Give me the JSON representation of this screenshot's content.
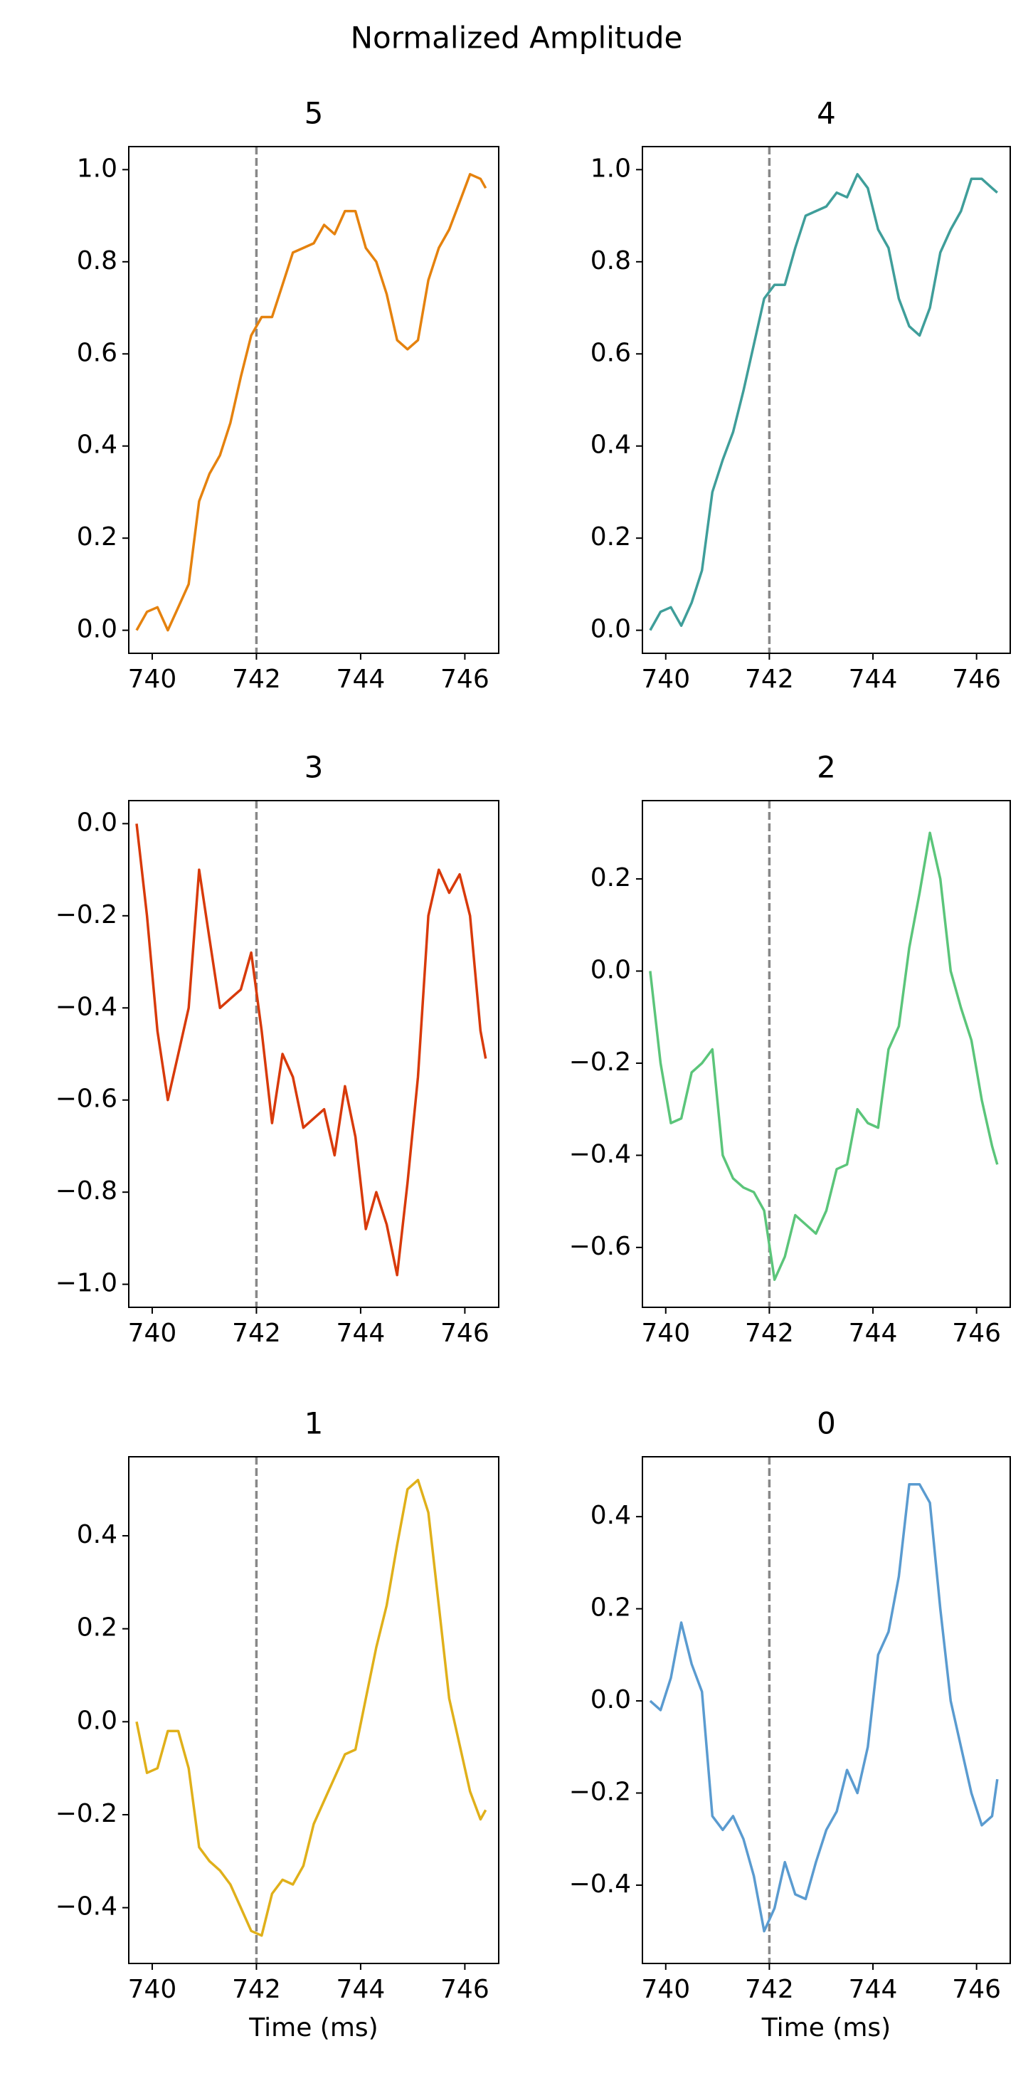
{
  "title": "Normalized Amplitude",
  "chart_data": [
    {
      "type": "line",
      "title": "5",
      "x": [
        739.7,
        739.9,
        740.1,
        740.3,
        740.5,
        740.7,
        740.9,
        741.1,
        741.3,
        741.5,
        741.7,
        741.9,
        742.1,
        742.3,
        742.5,
        742.7,
        742.9,
        743.1,
        743.3,
        743.5,
        743.7,
        743.9,
        744.1,
        744.3,
        744.5,
        744.7,
        744.9,
        745.1,
        745.3,
        745.5,
        745.7,
        745.9,
        746.1,
        746.3,
        746.4
      ],
      "series": [
        {
          "color": "#e5820e",
          "values": [
            0.0,
            0.04,
            0.05,
            0.0,
            0.05,
            0.1,
            0.28,
            0.34,
            0.38,
            0.45,
            0.55,
            0.64,
            0.68,
            0.68,
            0.75,
            0.82,
            0.83,
            0.84,
            0.88,
            0.86,
            0.91,
            0.91,
            0.83,
            0.8,
            0.73,
            0.63,
            0.61,
            0.63,
            0.76,
            0.83,
            0.87,
            0.93,
            0.99,
            0.98,
            0.96
          ]
        }
      ],
      "xlim": [
        739.55,
        746.65
      ],
      "xticks": [
        740,
        742,
        744,
        746
      ],
      "ylim": [
        -0.05,
        1.05
      ],
      "yticks": [
        {
          "value": 0,
          "label": "0.0"
        },
        0.2,
        0.4,
        0.6,
        0.8,
        {
          "value": 1,
          "label": "1.0"
        }
      ],
      "vline": 742
    },
    {
      "type": "line",
      "title": "4",
      "x": [
        739.7,
        739.9,
        740.1,
        740.3,
        740.5,
        740.7,
        740.9,
        741.1,
        741.3,
        741.5,
        741.7,
        741.9,
        742.1,
        742.3,
        742.5,
        742.7,
        742.9,
        743.1,
        743.3,
        743.5,
        743.7,
        743.9,
        744.1,
        744.3,
        744.5,
        744.7,
        744.9,
        745.1,
        745.3,
        745.5,
        745.7,
        745.9,
        746.1,
        746.3,
        746.4
      ],
      "series": [
        {
          "color": "#3f9e9a",
          "values": [
            0.0,
            0.04,
            0.05,
            0.01,
            0.06,
            0.13,
            0.3,
            0.37,
            0.43,
            0.52,
            0.62,
            0.72,
            0.75,
            0.75,
            0.83,
            0.9,
            0.91,
            0.92,
            0.95,
            0.94,
            0.99,
            0.96,
            0.87,
            0.83,
            0.72,
            0.66,
            0.64,
            0.7,
            0.82,
            0.87,
            0.91,
            0.98,
            0.98,
            0.96,
            0.95
          ]
        }
      ],
      "xlim": [
        739.55,
        746.65
      ],
      "xticks": [
        740,
        742,
        744,
        746
      ],
      "ylim": [
        -0.05,
        1.05
      ],
      "yticks": [
        {
          "value": 0,
          "label": "0.0"
        },
        0.2,
        0.4,
        0.6,
        0.8,
        {
          "value": 1,
          "label": "1.0"
        }
      ],
      "vline": 742
    },
    {
      "type": "line",
      "title": "3",
      "x": [
        739.7,
        739.9,
        740.1,
        740.3,
        740.5,
        740.7,
        740.9,
        741.1,
        741.3,
        741.5,
        741.7,
        741.9,
        742.1,
        742.3,
        742.5,
        742.7,
        742.9,
        743.1,
        743.3,
        743.5,
        743.7,
        743.9,
        744.1,
        744.3,
        744.5,
        744.7,
        744.9,
        745.1,
        745.3,
        745.5,
        745.7,
        745.9,
        746.1,
        746.3,
        746.4
      ],
      "series": [
        {
          "color": "#d83a0a",
          "values": [
            0.0,
            -0.2,
            -0.45,
            -0.6,
            -0.5,
            -0.4,
            -0.1,
            -0.25,
            -0.4,
            -0.38,
            -0.36,
            -0.28,
            -0.45,
            -0.65,
            -0.5,
            -0.55,
            -0.66,
            -0.64,
            -0.62,
            -0.72,
            -0.57,
            -0.68,
            -0.88,
            -0.8,
            -0.87,
            -0.98,
            -0.78,
            -0.55,
            -0.2,
            -0.1,
            -0.15,
            -0.11,
            -0.2,
            -0.45,
            -0.51
          ]
        }
      ],
      "xlim": [
        739.55,
        746.65
      ],
      "xticks": [
        740,
        742,
        744,
        746
      ],
      "ylim": [
        -1.05,
        0.05
      ],
      "yticks": [
        {
          "value": -1,
          "label": "−1.0"
        },
        {
          "value": -0.8,
          "label": "−0.8"
        },
        {
          "value": -0.6,
          "label": "−0.6"
        },
        {
          "value": -0.4,
          "label": "−0.4"
        },
        {
          "value": -0.2,
          "label": "−0.2"
        },
        {
          "value": 0,
          "label": "0.0"
        }
      ],
      "vline": 742
    },
    {
      "type": "line",
      "title": "2",
      "x": [
        739.7,
        739.9,
        740.1,
        740.3,
        740.5,
        740.7,
        740.9,
        741.1,
        741.3,
        741.5,
        741.7,
        741.9,
        742.1,
        742.3,
        742.5,
        742.7,
        742.9,
        743.1,
        743.3,
        743.5,
        743.7,
        743.9,
        744.1,
        744.3,
        744.5,
        744.7,
        744.9,
        745.1,
        745.3,
        745.5,
        745.7,
        745.9,
        746.1,
        746.3,
        746.4
      ],
      "series": [
        {
          "color": "#5bc57a",
          "values": [
            0.0,
            -0.2,
            -0.33,
            -0.32,
            -0.22,
            -0.2,
            -0.17,
            -0.4,
            -0.45,
            -0.47,
            -0.48,
            -0.52,
            -0.67,
            -0.62,
            -0.53,
            -0.55,
            -0.57,
            -0.52,
            -0.43,
            -0.42,
            -0.3,
            -0.33,
            -0.34,
            -0.17,
            -0.12,
            0.05,
            0.17,
            0.3,
            0.2,
            0.0,
            -0.08,
            -0.15,
            -0.28,
            -0.38,
            -0.42
          ]
        }
      ],
      "xlim": [
        739.55,
        746.65
      ],
      "xticks": [
        740,
        742,
        744,
        746
      ],
      "ylim": [
        -0.73,
        0.37
      ],
      "yticks": [
        {
          "value": -0.6,
          "label": "−0.6"
        },
        {
          "value": -0.4,
          "label": "−0.4"
        },
        {
          "value": -0.2,
          "label": "−0.2"
        },
        {
          "value": 0,
          "label": "0.0"
        },
        0.2
      ],
      "vline": 742
    },
    {
      "type": "line",
      "title": "1",
      "xlabel": "Time (ms)",
      "x": [
        739.7,
        739.9,
        740.1,
        740.3,
        740.5,
        740.7,
        740.9,
        741.1,
        741.3,
        741.5,
        741.7,
        741.9,
        742.1,
        742.3,
        742.5,
        742.7,
        742.9,
        743.1,
        743.3,
        743.5,
        743.7,
        743.9,
        744.1,
        744.3,
        744.5,
        744.7,
        744.9,
        745.1,
        745.3,
        745.5,
        745.7,
        745.9,
        746.1,
        746.3,
        746.4
      ],
      "series": [
        {
          "color": "#e0b01a",
          "values": [
            0.0,
            -0.11,
            -0.1,
            -0.02,
            -0.02,
            -0.1,
            -0.27,
            -0.3,
            -0.32,
            -0.35,
            -0.4,
            -0.45,
            -0.46,
            -0.37,
            -0.34,
            -0.35,
            -0.31,
            -0.22,
            -0.17,
            -0.12,
            -0.07,
            -0.06,
            0.05,
            0.16,
            0.25,
            0.38,
            0.5,
            0.52,
            0.45,
            0.25,
            0.05,
            -0.05,
            -0.15,
            -0.21,
            -0.19
          ]
        }
      ],
      "xlim": [
        739.55,
        746.65
      ],
      "xticks": [
        740,
        742,
        744,
        746
      ],
      "ylim": [
        -0.52,
        0.57
      ],
      "yticks": [
        {
          "value": -0.4,
          "label": "−0.4"
        },
        {
          "value": -0.2,
          "label": "−0.2"
        },
        {
          "value": 0,
          "label": "0.0"
        },
        0.2,
        0.4
      ],
      "vline": 742
    },
    {
      "type": "line",
      "title": "0",
      "xlabel": "Time (ms)",
      "x": [
        739.7,
        739.9,
        740.1,
        740.3,
        740.5,
        740.7,
        740.9,
        741.1,
        741.3,
        741.5,
        741.7,
        741.9,
        742.1,
        742.3,
        742.5,
        742.7,
        742.9,
        743.1,
        743.3,
        743.5,
        743.7,
        743.9,
        744.1,
        744.3,
        744.5,
        744.7,
        744.9,
        745.1,
        745.3,
        745.5,
        745.7,
        745.9,
        746.1,
        746.3,
        746.4
      ],
      "series": [
        {
          "color": "#5a9bd0",
          "values": [
            0.0,
            -0.02,
            0.05,
            0.17,
            0.08,
            0.02,
            -0.25,
            -0.28,
            -0.25,
            -0.3,
            -0.38,
            -0.5,
            -0.45,
            -0.35,
            -0.42,
            -0.43,
            -0.35,
            -0.28,
            -0.24,
            -0.15,
            -0.2,
            -0.1,
            0.1,
            0.15,
            0.27,
            0.47,
            0.47,
            0.43,
            0.2,
            0.0,
            -0.1,
            -0.2,
            -0.27,
            -0.25,
            -0.17
          ]
        }
      ],
      "xlim": [
        739.55,
        746.65
      ],
      "xticks": [
        740,
        742,
        744,
        746
      ],
      "ylim": [
        -0.57,
        0.53
      ],
      "yticks": [
        {
          "value": -0.4,
          "label": "−0.4"
        },
        {
          "value": -0.2,
          "label": "−0.2"
        },
        {
          "value": 0,
          "label": "0.0"
        },
        0.2,
        0.4
      ],
      "vline": 742
    }
  ]
}
